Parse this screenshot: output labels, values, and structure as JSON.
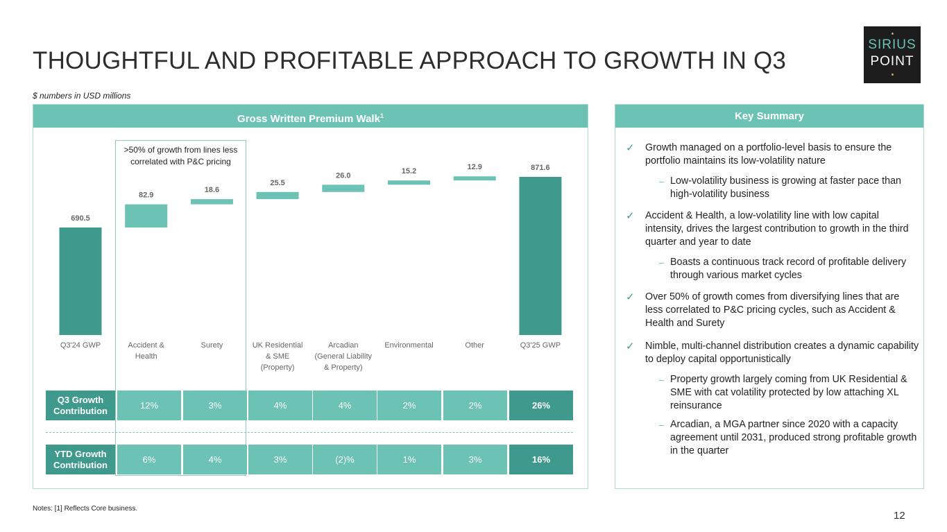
{
  "header": {
    "title": "THOUGHTFUL AND PROFITABLE APPROACH TO GROWTH IN Q3",
    "units": "$ numbers in USD millions",
    "logo_line1": "SIRIUS",
    "logo_line2": "POINT"
  },
  "left_panel": {
    "heading": "Gross Written Premium Walk",
    "heading_sup": "1",
    "callout": ">50% of growth from lines less correlated with P&C pricing"
  },
  "chart_data": {
    "type": "bar",
    "subtype": "waterfall",
    "title": "Gross Written Premium Walk",
    "unit": "$ numbers in USD millions",
    "categories": [
      "Q3'24 GWP",
      "Accident & Health",
      "Surety",
      "UK Residential & SME (Property)",
      "Arcadian (General Liability & Property)",
      "Environmental",
      "Other",
      "Q3'25 GWP"
    ],
    "category_lines": [
      [
        "Q3'24 GWP"
      ],
      [
        "Accident &",
        "Health"
      ],
      [
        "Surety"
      ],
      [
        "UK Residential",
        "& SME",
        "(Property)"
      ],
      [
        "Arcadian",
        "(General Liability",
        "& Property)"
      ],
      [
        "Environmental"
      ],
      [
        "Other"
      ],
      [
        "Q3'25 GWP"
      ]
    ],
    "values": [
      690.5,
      82.9,
      18.6,
      25.5,
      26.0,
      15.2,
      12.9,
      871.6
    ],
    "value_labels": [
      "690.5",
      "82.9",
      "18.6",
      "25.5",
      "26.0",
      "15.2",
      "12.9",
      "871.6"
    ],
    "kinds": [
      "total",
      "delta",
      "delta",
      "delta",
      "delta",
      "delta",
      "delta",
      "total"
    ],
    "colors": {
      "total": "#3f9a8d",
      "delta": "#6cc2b5"
    }
  },
  "table": {
    "rows": [
      {
        "head": "Q3 Growth Contribution",
        "cells": [
          "12%",
          "3%",
          "4%",
          "4%",
          "2%",
          "2%",
          "26%"
        ]
      },
      {
        "head": "YTD Growth Contribution",
        "cells": [
          "6%",
          "4%",
          "3%",
          "(2)%",
          "1%",
          "3%",
          "16%"
        ]
      }
    ]
  },
  "right_panel": {
    "heading": "Key Summary",
    "bullets": [
      {
        "text": "Growth managed on a portfolio-level basis to ensure the portfolio maintains its low-volatility nature",
        "subs": [
          "Low-volatility business is growing at faster pace than high-volatility business"
        ]
      },
      {
        "text": "Accident & Health, a low-volatility line with low capital intensity, drives the largest contribution to growth in the third quarter and year to date",
        "subs": [
          "Boasts a continuous track record of profitable delivery through various market cycles"
        ]
      },
      {
        "text": "Over 50% of growth comes from diversifying lines that are less correlated to P&C pricing cycles, such as Accident & Health and Surety",
        "subs": []
      },
      {
        "text": "Nimble, multi-channel distribution creates a dynamic capability to deploy capital opportunistically",
        "subs": [
          "Property growth largely coming from UK Residential & SME with cat volatility protected by low attaching XL reinsurance",
          "Arcadian, a MGA partner since 2020 with a capacity agreement until 2031, produced strong profitable growth in the quarter"
        ]
      }
    ]
  },
  "footer": {
    "notes": "Notes: [1] Reflects Core business.",
    "page": "12"
  }
}
